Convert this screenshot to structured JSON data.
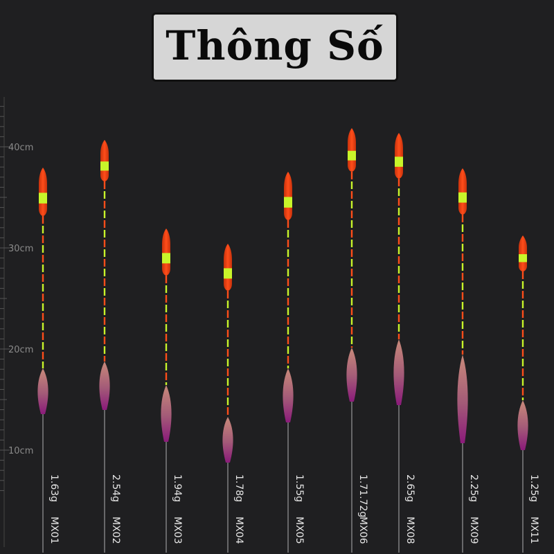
{
  "title": "Thông Số",
  "scale": {
    "ticks": [
      {
        "label": "40cm",
        "cm": 40
      },
      {
        "label": "30cm",
        "cm": 30
      },
      {
        "label": "20cm",
        "cm": 20
      },
      {
        "label": "10cm",
        "cm": 10
      }
    ]
  },
  "floats": [
    {
      "model": "MX01",
      "weight": "1.63g"
    },
    {
      "model": "MX02",
      "weight": "2.54g"
    },
    {
      "model": "MX03",
      "weight": "1.94g"
    },
    {
      "model": "MX04",
      "weight": "1.78g"
    },
    {
      "model": "MX05",
      "weight": "1.55g"
    },
    {
      "model": "MX06",
      "weight": "1.71.72g"
    },
    {
      "model": "MX08",
      "weight": "2.65g"
    },
    {
      "model": "MX09",
      "weight": "2.25g"
    },
    {
      "model": "MX11",
      "weight": "1.25g"
    }
  ],
  "colors": {
    "background": "#1f1f21",
    "tip_orange": "#ff4d1a",
    "tip_green": "#c8f52a",
    "body_top": "#c98a7a",
    "body_bottom": "#8b1a7a",
    "stem": "#9a9a9a"
  }
}
